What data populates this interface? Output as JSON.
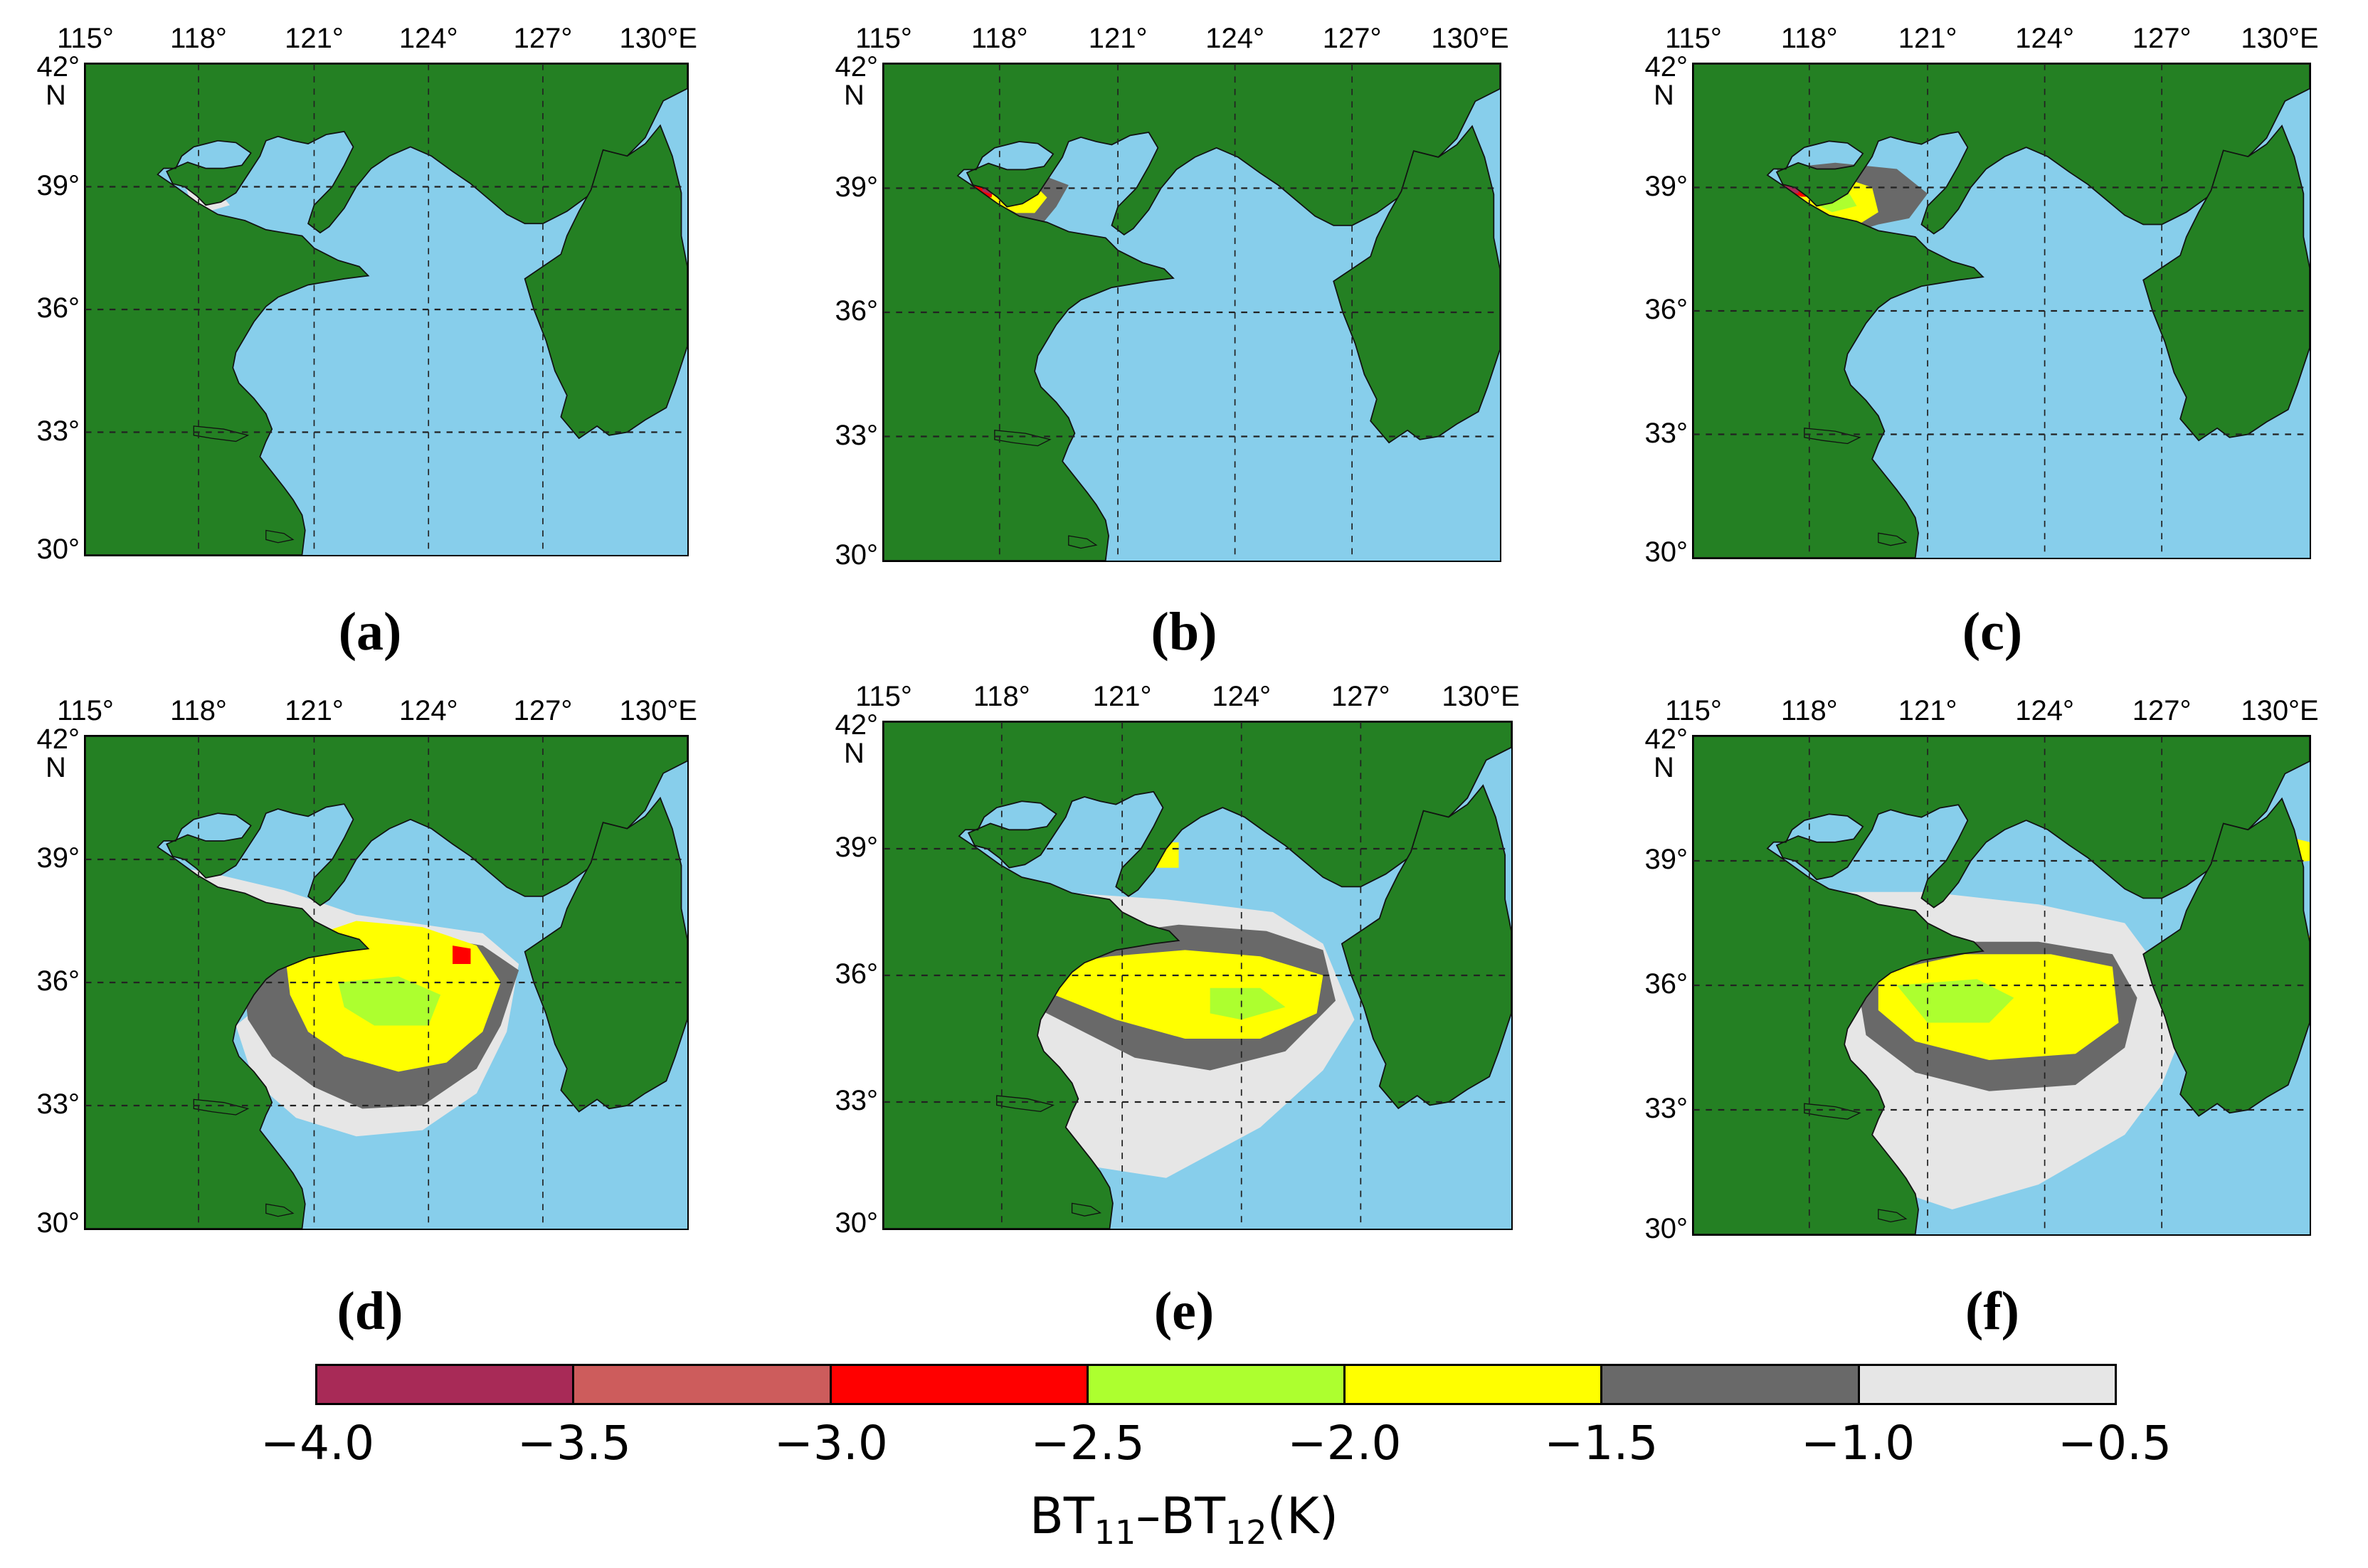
{
  "longitude_labels": [
    "115°",
    "118°",
    "121°",
    "124°",
    "127°",
    "130°E"
  ],
  "latitude_labels": [
    "42°",
    "39°",
    "36°",
    "33°",
    "30°"
  ],
  "north_label": "N",
  "colors": {
    "land": "#248023",
    "sea": "#87ceeb",
    "frame": "#000000"
  },
  "panels": [
    {
      "letter": "(a)",
      "dust_extent": "minimal"
    },
    {
      "letter": "(b)",
      "dust_extent": "bohai-bay"
    },
    {
      "letter": "(c)",
      "dust_extent": "bohai-bay-extended"
    },
    {
      "letter": "(d)",
      "dust_extent": "yellow-sea-central"
    },
    {
      "letter": "(e)",
      "dust_extent": "yellow-sea-band"
    },
    {
      "letter": "(f)",
      "dust_extent": "yellow-sea-south"
    }
  ],
  "colorbar": {
    "colors": [
      "#a82a57",
      "#cd5c5c",
      "#ff0000",
      "#adff2f",
      "#ffff00",
      "#696969",
      "#e6e6e6"
    ],
    "ticks": [
      "−4.0",
      "−3.5",
      "−3.0",
      "−2.5",
      "−2.0",
      "−1.5",
      "−1.0",
      "−0.5"
    ],
    "label_parts": {
      "a": "BT",
      "sub1": "11",
      "mid": "–BT",
      "sub2": "12",
      "unit": "(K)"
    }
  }
}
